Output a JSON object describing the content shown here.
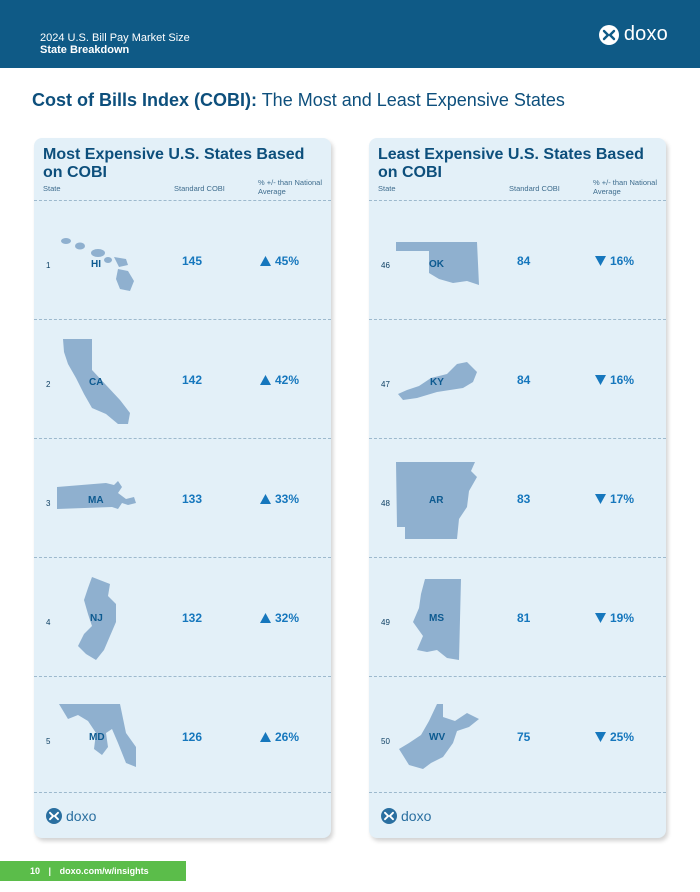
{
  "header": {
    "subtitle": "2024 U.S. Bill Pay Market Size",
    "title": "State Breakdown",
    "brand": "doxo"
  },
  "page_title": {
    "bold": "Cost of Bills Index (COBI):",
    "rest": "The Most and Least Expensive States"
  },
  "most_expensive": {
    "title": "Most Expensive U.S. States Based on COBI",
    "col_state": "State",
    "col_cobi": "Standard COBI",
    "col_pct": "% +/- than National Average",
    "rows": [
      {
        "rank": "1",
        "state": "HI",
        "cobi": "145",
        "pct": "45%"
      },
      {
        "rank": "2",
        "state": "CA",
        "cobi": "142",
        "pct": "42%"
      },
      {
        "rank": "3",
        "state": "MA",
        "cobi": "133",
        "pct": "33%"
      },
      {
        "rank": "4",
        "state": "NJ",
        "cobi": "132",
        "pct": "32%"
      },
      {
        "rank": "5",
        "state": "MD",
        "cobi": "126",
        "pct": "26%"
      }
    ],
    "logo": "doxo"
  },
  "least_expensive": {
    "title": "Least Expensive U.S. States Based on COBI",
    "col_state": "State",
    "col_cobi": "Standard COBI",
    "col_pct": "% +/- than National Average",
    "rows": [
      {
        "rank": "46",
        "state": "OK",
        "cobi": "84",
        "pct": "16%"
      },
      {
        "rank": "47",
        "state": "KY",
        "cobi": "84",
        "pct": "16%"
      },
      {
        "rank": "48",
        "state": "AR",
        "cobi": "83",
        "pct": "17%"
      },
      {
        "rank": "49",
        "state": "MS",
        "cobi": "81",
        "pct": "19%"
      },
      {
        "rank": "50",
        "state": "WV",
        "cobi": "75",
        "pct": "25%"
      }
    ],
    "logo": "doxo"
  },
  "footer": {
    "page_number": "10",
    "separator": "|",
    "url": "doxo.com/w/insights"
  },
  "colors": {
    "header_bg": "#0f5a86",
    "panel_bg": "#e3f0f8",
    "accent": "#1677bd",
    "state_shape": "#8fb0cf",
    "footer_green": "#5bbd4a"
  },
  "icons": {
    "up": "triangle-up-icon",
    "down": "triangle-down-icon",
    "logo": "doxo-logo-icon"
  }
}
